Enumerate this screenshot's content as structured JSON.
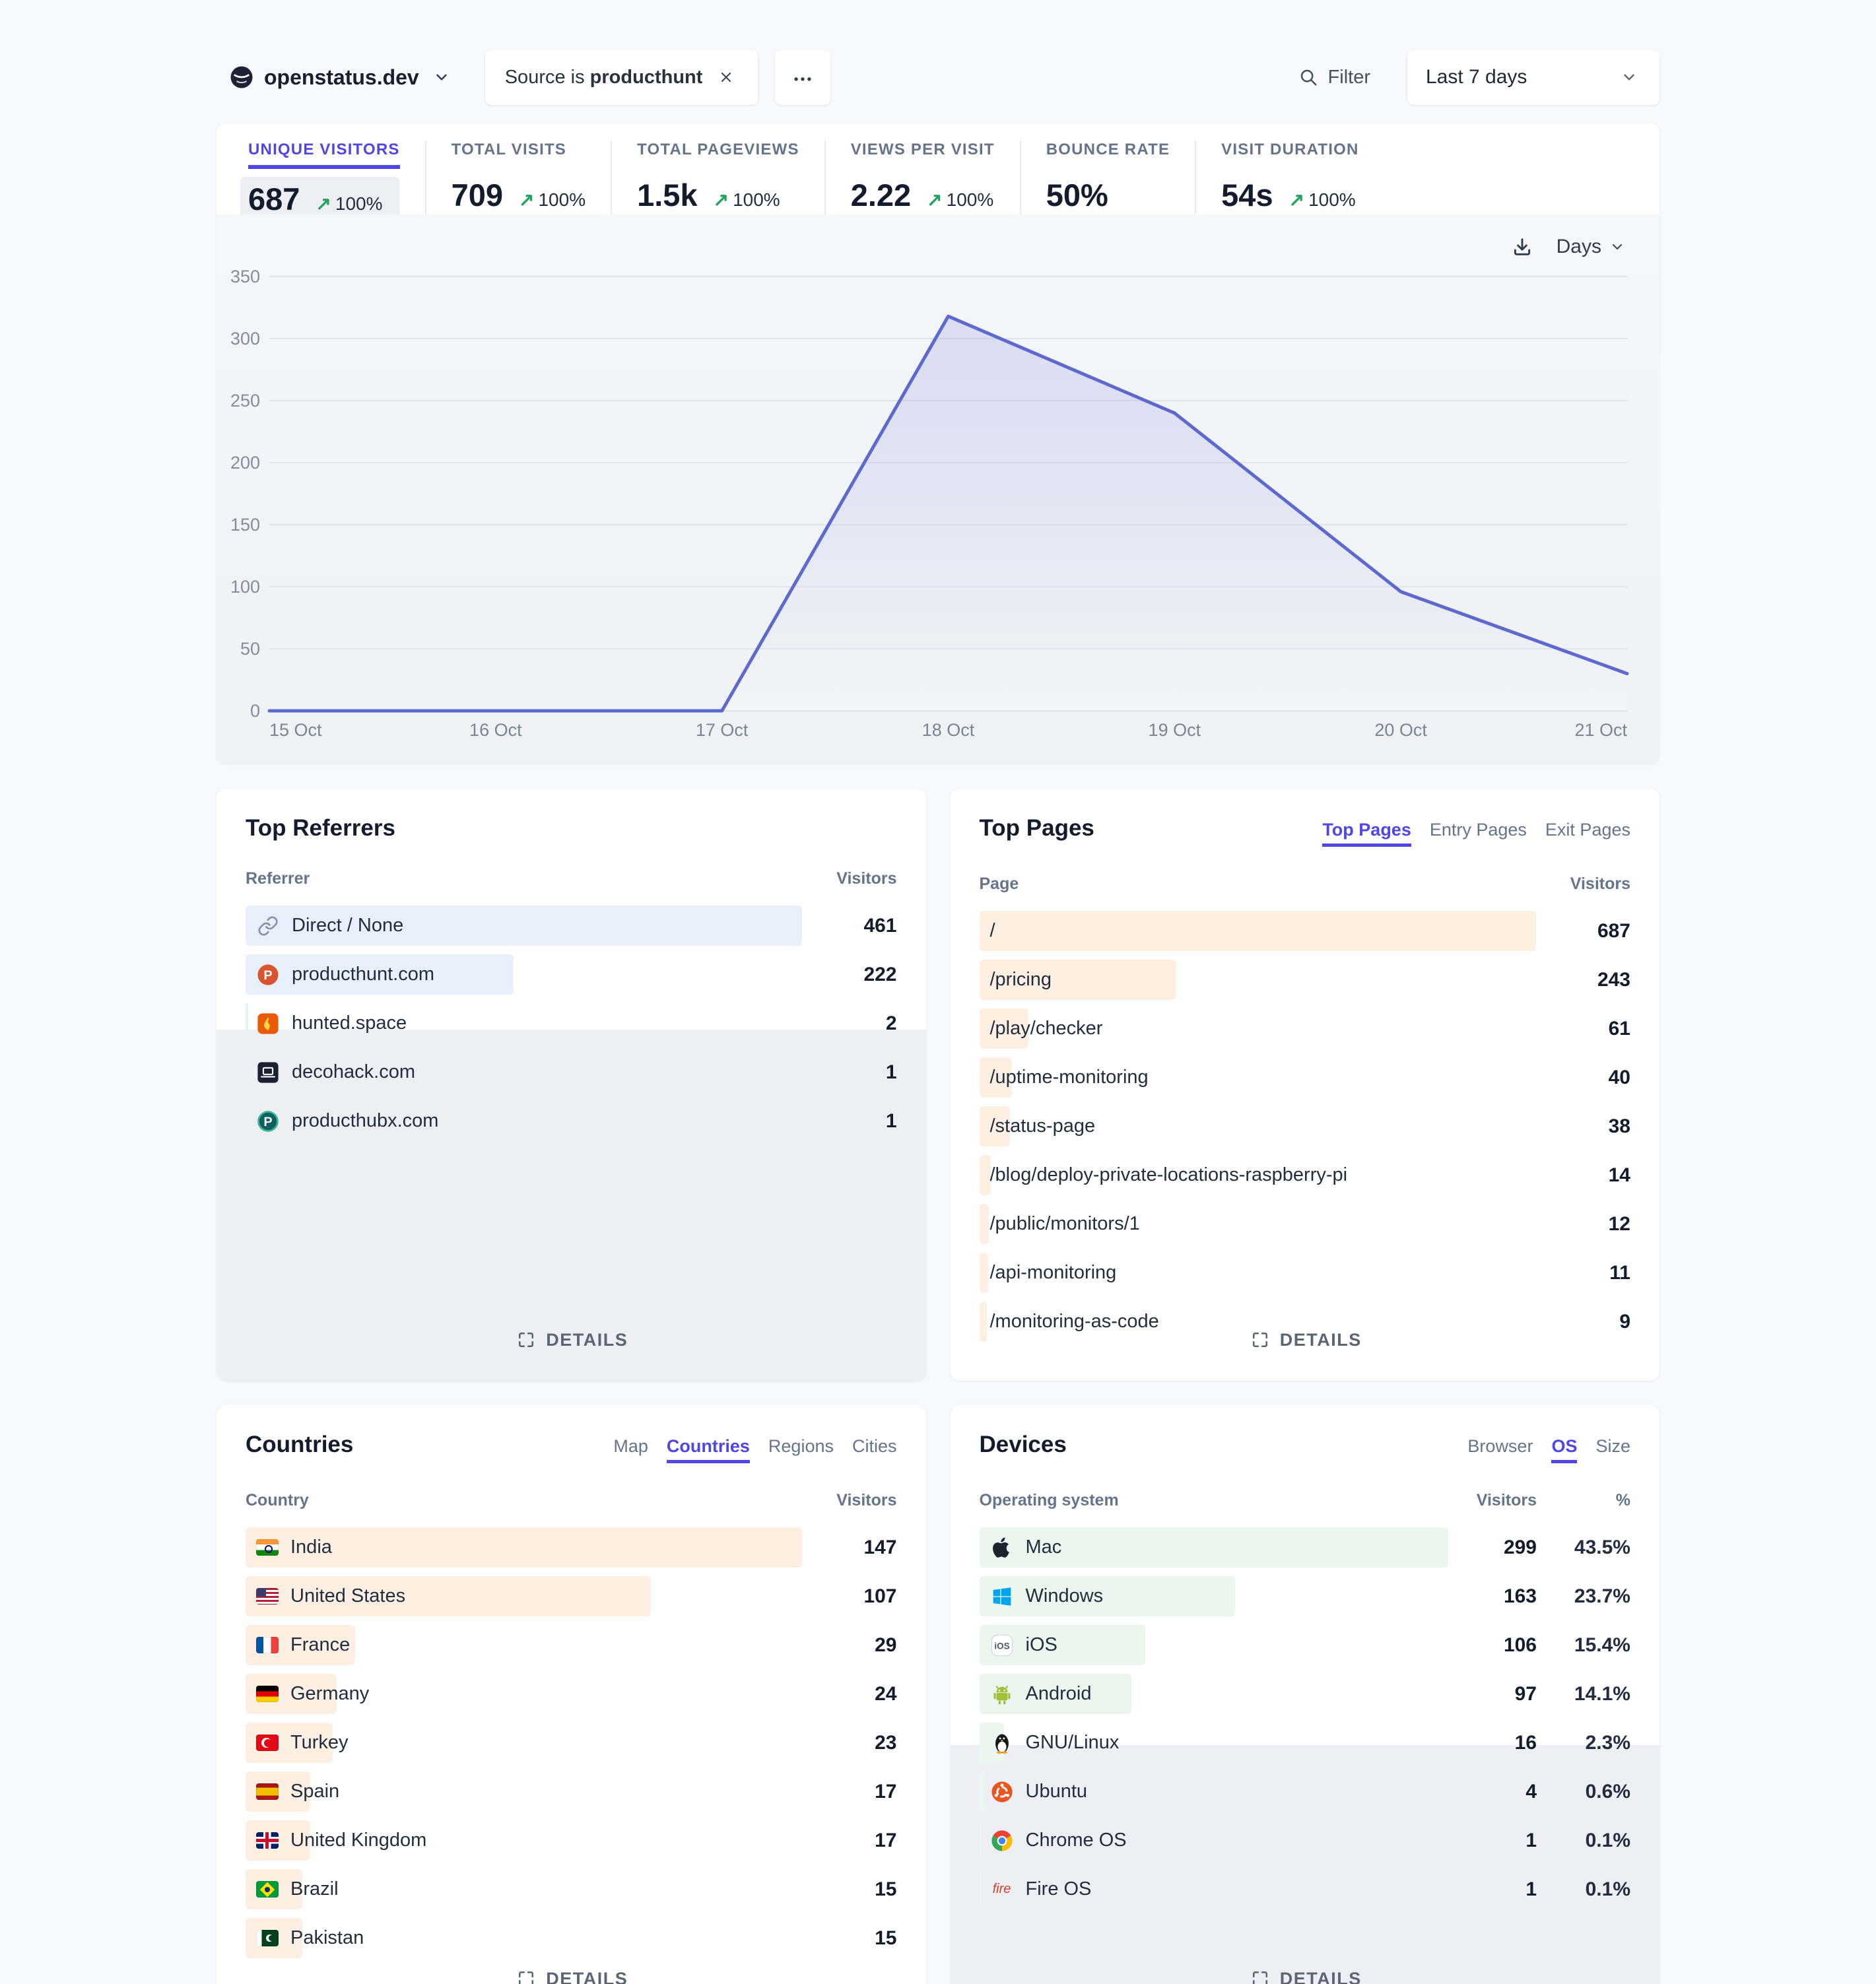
{
  "header": {
    "site_name": "openstatus.dev",
    "filter_chip": {
      "prefix": "Source is",
      "value": "producthunt"
    },
    "filter_label": "Filter",
    "date_range": "Last 7 days"
  },
  "stats": [
    {
      "label": "UNIQUE VISITORS",
      "value": "687",
      "change": "100%",
      "active": true
    },
    {
      "label": "TOTAL VISITS",
      "value": "709",
      "change": "100%",
      "active": false
    },
    {
      "label": "TOTAL PAGEVIEWS",
      "value": "1.5k",
      "change": "100%",
      "active": false
    },
    {
      "label": "VIEWS PER VISIT",
      "value": "2.22",
      "change": "100%",
      "active": false
    },
    {
      "label": "BOUNCE RATE",
      "value": "50%",
      "change": null,
      "active": false
    },
    {
      "label": "VISIT DURATION",
      "value": "54s",
      "change": "100%",
      "active": false
    }
  ],
  "chart_data": {
    "type": "area",
    "series_name": "Unique visitors",
    "interval_label": "Days",
    "x": [
      "15 Oct",
      "16 Oct",
      "17 Oct",
      "18 Oct",
      "19 Oct",
      "20 Oct",
      "21 Oct"
    ],
    "values": [
      0,
      0,
      0,
      318,
      240,
      96,
      30
    ],
    "ylim": [
      0,
      350
    ],
    "yticks": [
      0,
      50,
      100,
      150,
      200,
      250,
      300,
      350
    ],
    "grid": true,
    "legend": false
  },
  "top_referrers": {
    "title": "Top Referrers",
    "columns": [
      "Referrer",
      "Visitors"
    ],
    "rows": [
      {
        "label": "Direct / None",
        "value": 461,
        "icon": "link-icon"
      },
      {
        "label": "producthunt.com",
        "value": 222,
        "icon": "producthunt-icon"
      },
      {
        "label": "hunted.space",
        "value": 2,
        "icon": "huntedspace-icon"
      },
      {
        "label": "decohack.com",
        "value": 1,
        "icon": "decohack-icon"
      },
      {
        "label": "producthubx.com",
        "value": 1,
        "icon": "producthubx-icon"
      }
    ],
    "details_label": "DETAILS"
  },
  "top_pages": {
    "title": "Top Pages",
    "tabs": [
      {
        "label": "Top Pages",
        "active": true
      },
      {
        "label": "Entry Pages",
        "active": false
      },
      {
        "label": "Exit Pages",
        "active": false
      }
    ],
    "columns": [
      "Page",
      "Visitors"
    ],
    "rows": [
      {
        "label": "/",
        "value": 687
      },
      {
        "label": "/pricing",
        "value": 243
      },
      {
        "label": "/play/checker",
        "value": 61
      },
      {
        "label": "/uptime-monitoring",
        "value": 40
      },
      {
        "label": "/status-page",
        "value": 38
      },
      {
        "label": "/blog/deploy-private-locations-raspberry-pi",
        "value": 14
      },
      {
        "label": "/public/monitors/1",
        "value": 12
      },
      {
        "label": "/api-monitoring",
        "value": 11
      },
      {
        "label": "/monitoring-as-code",
        "value": 9
      }
    ],
    "details_label": "DETAILS"
  },
  "countries": {
    "title": "Countries",
    "tabs": [
      {
        "label": "Map",
        "active": false
      },
      {
        "label": "Countries",
        "active": true
      },
      {
        "label": "Regions",
        "active": false
      },
      {
        "label": "Cities",
        "active": false
      }
    ],
    "columns": [
      "Country",
      "Visitors"
    ],
    "rows": [
      {
        "label": "India",
        "value": 147,
        "flag": "in"
      },
      {
        "label": "United States",
        "value": 107,
        "flag": "us"
      },
      {
        "label": "France",
        "value": 29,
        "flag": "fr"
      },
      {
        "label": "Germany",
        "value": 24,
        "flag": "de"
      },
      {
        "label": "Turkey",
        "value": 23,
        "flag": "tr"
      },
      {
        "label": "Spain",
        "value": 17,
        "flag": "es"
      },
      {
        "label": "United Kingdom",
        "value": 17,
        "flag": "gb"
      },
      {
        "label": "Brazil",
        "value": 15,
        "flag": "br"
      },
      {
        "label": "Pakistan",
        "value": 15,
        "flag": "pk"
      }
    ],
    "details_label": "DETAILS"
  },
  "devices": {
    "title": "Devices",
    "tabs": [
      {
        "label": "Browser",
        "active": false
      },
      {
        "label": "OS",
        "active": true
      },
      {
        "label": "Size",
        "active": false
      }
    ],
    "columns": [
      "Operating system",
      "Visitors",
      "%"
    ],
    "rows": [
      {
        "label": "Mac",
        "visitors": 299,
        "pct": "43.5%",
        "icon": "apple-icon"
      },
      {
        "label": "Windows",
        "visitors": 163,
        "pct": "23.7%",
        "icon": "windows-icon"
      },
      {
        "label": "iOS",
        "visitors": 106,
        "pct": "15.4%",
        "icon": "ios-icon"
      },
      {
        "label": "Android",
        "visitors": 97,
        "pct": "14.1%",
        "icon": "android-icon"
      },
      {
        "label": "GNU/Linux",
        "visitors": 16,
        "pct": "2.3%",
        "icon": "linux-icon"
      },
      {
        "label": "Ubuntu",
        "visitors": 4,
        "pct": "0.6%",
        "icon": "ubuntu-icon"
      },
      {
        "label": "Chrome OS",
        "visitors": 1,
        "pct": "0.1%",
        "icon": "chromeos-icon"
      },
      {
        "label": "Fire OS",
        "visitors": 1,
        "pct": "0.1%",
        "icon": "fireos-icon"
      }
    ],
    "details_label": "DETAILS"
  },
  "colors": {
    "accent": "#4f46e5",
    "chart_line": "#5e69ce",
    "positive_green": "#1fa45b",
    "bar_blue": "#e8f0fb",
    "bar_orange": "#fdf0e2",
    "bar_green": "#eaf6ee",
    "muted_overlay": "#edeff4"
  }
}
